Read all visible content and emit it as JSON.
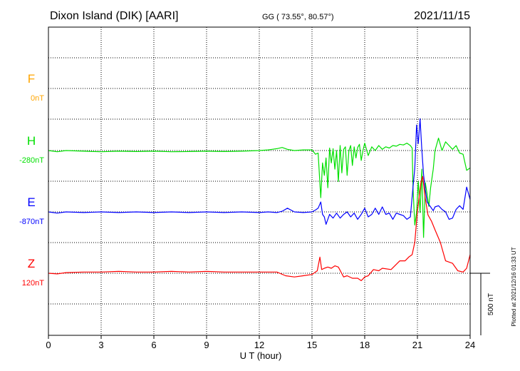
{
  "chart_data": {
    "type": "line",
    "station": "Dixon Island (DIK)  [AARI]",
    "coords": "GG ( 73.55°,  80.57°)",
    "date": "2021/11/15",
    "xlabel": "U T (hour)",
    "xlim": [
      0,
      24
    ],
    "xticks": [
      "0",
      "3",
      "6",
      "9",
      "12",
      "15",
      "18",
      "21",
      "24"
    ],
    "scale_label": "500 nT",
    "scale_nT": 500,
    "plotted_note": "Plotted at 2021/12/16 01:33 UT",
    "series": [
      {
        "name": "F",
        "baseline": "0nT",
        "color": "#ffa500",
        "slot": 0,
        "x": [],
        "y": []
      },
      {
        "name": "H",
        "baseline": "-280nT",
        "color": "#00e000",
        "slot": 1,
        "x": [
          0,
          0.5,
          1,
          2,
          3,
          4,
          5,
          6,
          7,
          8,
          9,
          10,
          11,
          12,
          12.5,
          13,
          13.3,
          13.6,
          14,
          14.5,
          15,
          15.2,
          15.35,
          15.5,
          15.6,
          15.7,
          15.8,
          15.9,
          16.0,
          16.1,
          16.2,
          16.3,
          16.4,
          16.5,
          16.6,
          16.7,
          16.8,
          16.9,
          17.0,
          17.1,
          17.2,
          17.3,
          17.4,
          17.5,
          17.6,
          17.7,
          17.8,
          17.9,
          18.0,
          18.2,
          18.4,
          18.6,
          18.8,
          19.0,
          19.2,
          19.4,
          19.6,
          19.8,
          20.0,
          20.2,
          20.4,
          20.6,
          20.7,
          20.75,
          20.85,
          20.95,
          21.05,
          21.15,
          21.25,
          21.35,
          21.45,
          21.55,
          21.65,
          21.75,
          21.9,
          22.0,
          22.2,
          22.4,
          22.6,
          22.8,
          23.0,
          23.2,
          23.4,
          23.6,
          23.8,
          24.0
        ],
        "y": [
          0,
          -10,
          0,
          -5,
          -10,
          -5,
          -8,
          -5,
          -10,
          -8,
          -5,
          -8,
          -5,
          0,
          5,
          15,
          25,
          10,
          0,
          5,
          5,
          -30,
          -20,
          -380,
          -100,
          -200,
          -60,
          -300,
          20,
          -100,
          15,
          -150,
          0,
          -250,
          40,
          -180,
          10,
          30,
          -200,
          0,
          40,
          -120,
          30,
          -60,
          25,
          50,
          -80,
          0,
          60,
          -40,
          30,
          0,
          40,
          10,
          30,
          20,
          40,
          35,
          50,
          45,
          60,
          40,
          20,
          -300,
          -600,
          -500,
          -250,
          -500,
          -150,
          -700,
          -260,
          -350,
          -450,
          -300,
          -150,
          0,
          100,
          0,
          70,
          40,
          10,
          40,
          -20,
          -30,
          -160,
          -140
        ]
      },
      {
        "name": "E",
        "baseline": "-870nT",
        "color": "#0000ff",
        "slot": 2,
        "x": [
          0,
          0.5,
          1,
          2,
          3,
          4,
          5,
          6,
          7,
          8,
          9,
          10,
          11,
          12,
          12.5,
          13,
          13.3,
          13.6,
          14,
          14.5,
          15,
          15.2,
          15.35,
          15.5,
          15.6,
          15.7,
          15.8,
          15.9,
          16.0,
          16.2,
          16.4,
          16.6,
          16.8,
          17.0,
          17.2,
          17.4,
          17.6,
          17.8,
          18.0,
          18.2,
          18.4,
          18.6,
          18.8,
          19.0,
          19.2,
          19.4,
          19.6,
          19.8,
          20.0,
          20.2,
          20.4,
          20.6,
          20.75,
          20.85,
          20.95,
          21.05,
          21.15,
          21.25,
          21.35,
          21.45,
          21.55,
          21.65,
          21.75,
          21.9,
          22.0,
          22.2,
          22.4,
          22.6,
          22.8,
          23.0,
          23.2,
          23.4,
          23.6,
          23.8,
          24.0
        ],
        "y": [
          0,
          -10,
          0,
          -5,
          0,
          -5,
          0,
          -5,
          0,
          -5,
          0,
          -5,
          0,
          -5,
          0,
          -5,
          5,
          30,
          0,
          -5,
          0,
          15,
          30,
          80,
          -20,
          -40,
          -100,
          -60,
          -20,
          -50,
          -10,
          -50,
          -20,
          0,
          -40,
          -10,
          -60,
          -20,
          30,
          -40,
          -20,
          30,
          -20,
          40,
          -20,
          -10,
          -60,
          -10,
          -20,
          -30,
          -60,
          -40,
          200,
          350,
          700,
          550,
          750,
          500,
          300,
          180,
          80,
          60,
          40,
          10,
          40,
          50,
          20,
          0,
          -60,
          -50,
          20,
          50,
          20,
          200,
          100
        ]
      },
      {
        "name": "Z",
        "baseline": "120nT",
        "color": "#ff0000",
        "slot": 3,
        "x": [
          0,
          0.5,
          1,
          2,
          3,
          4,
          5,
          6,
          7,
          8,
          9,
          10,
          11,
          12,
          13,
          13.5,
          14,
          14.5,
          15,
          15.3,
          15.45,
          15.55,
          15.7,
          15.9,
          16.1,
          16.3,
          16.5,
          16.8,
          17.0,
          17.3,
          17.6,
          17.8,
          18.0,
          18.2,
          18.5,
          18.8,
          19.0,
          19.5,
          20.0,
          20.3,
          20.5,
          20.7,
          20.85,
          21.0,
          21.2,
          21.3,
          21.45,
          21.6,
          21.8,
          22.0,
          22.3,
          22.6,
          23.0,
          23.3,
          23.6,
          23.8,
          24.0
        ],
        "y": [
          0,
          -5,
          5,
          10,
          10,
          15,
          10,
          10,
          15,
          10,
          15,
          10,
          10,
          10,
          10,
          -20,
          -30,
          -20,
          -10,
          20,
          130,
          30,
          40,
          50,
          40,
          60,
          50,
          -30,
          -20,
          -40,
          -40,
          -60,
          -30,
          -20,
          30,
          20,
          40,
          30,
          100,
          100,
          130,
          150,
          250,
          500,
          730,
          780,
          600,
          470,
          420,
          350,
          250,
          100,
          80,
          20,
          10,
          40,
          150
        ]
      }
    ]
  }
}
